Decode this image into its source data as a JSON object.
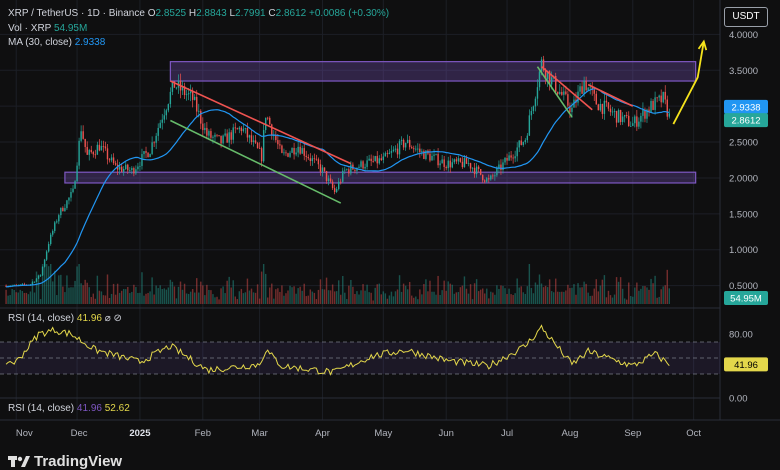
{
  "header": {
    "symbol": "XRP / TetherUS · 1D · Binance",
    "o_label": "O",
    "o": "2.8525",
    "h_label": "H",
    "h": "2.8843",
    "l_label": "L",
    "l": "2.7991",
    "c_label": "C",
    "c": "2.8612",
    "change": "+0.0086 (+0.30%)",
    "vol_label": "Vol · XRP",
    "vol": "54.95M",
    "ma_label": "MA (30, close)",
    "ma": "2.9338"
  },
  "currency_button": "USDT",
  "rsi_header": {
    "label": "RSI (14, close)",
    "value": "41.96",
    "icons": "⌀ ⊘"
  },
  "rsi_footer": {
    "label": "RSI (14, close)",
    "value1": "41.96",
    "value2": "52.62"
  },
  "brand": "TradingView",
  "colors": {
    "up": "#26a69a",
    "down": "#ef5350",
    "ma": "#2196f3",
    "zone": "#7e57c2",
    "rsi": "#e3d74b",
    "arrow": "#f5e31c"
  },
  "chart_data": {
    "type": "candlestick",
    "price_axis": {
      "ticks": [
        "4.0000",
        "3.5000",
        "3.0000",
        "2.5000",
        "2.0000",
        "1.5000",
        "1.0000",
        "0.5000"
      ],
      "ylim": [
        0.3,
        4.2
      ]
    },
    "time_axis": {
      "labels": [
        "Nov",
        "Dec",
        "2025",
        "Feb",
        "Mar",
        "Apr",
        "May",
        "Jun",
        "Jul",
        "Aug",
        "Sep",
        "Oct"
      ]
    },
    "price_labels": {
      "ma": "2.9338",
      "close": "2.8612",
      "volume": "54.95M"
    },
    "rsi_axis": {
      "ticks": [
        "80.00",
        "0.00"
      ],
      "current": "41.96",
      "ylim": [
        0,
        100
      ],
      "overbought": 70,
      "oversold": 30
    },
    "close_path": [
      {
        "d": "2024-11-01",
        "v": 0.5
      },
      {
        "d": "2024-11-08",
        "v": 0.52
      },
      {
        "d": "2024-11-13",
        "v": 0.65
      },
      {
        "d": "2024-11-17",
        "v": 1.1
      },
      {
        "d": "2024-11-22",
        "v": 1.5
      },
      {
        "d": "2024-11-29",
        "v": 1.8
      },
      {
        "d": "2024-12-03",
        "v": 2.7
      },
      {
        "d": "2024-12-06",
        "v": 2.3
      },
      {
        "d": "2024-12-12",
        "v": 2.45
      },
      {
        "d": "2024-12-20",
        "v": 2.15
      },
      {
        "d": "2024-12-28",
        "v": 2.1
      },
      {
        "d": "2025-01-06",
        "v": 2.4
      },
      {
        "d": "2025-01-15",
        "v": 3.1
      },
      {
        "d": "2025-01-18",
        "v": 3.3
      },
      {
        "d": "2025-01-27",
        "v": 3.1
      },
      {
        "d": "2025-02-03",
        "v": 2.6
      },
      {
        "d": "2025-02-10",
        "v": 2.5
      },
      {
        "d": "2025-02-20",
        "v": 2.7
      },
      {
        "d": "2025-03-02",
        "v": 2.3
      },
      {
        "d": "2025-03-04",
        "v": 2.9
      },
      {
        "d": "2025-03-12",
        "v": 2.3
      },
      {
        "d": "2025-03-20",
        "v": 2.45
      },
      {
        "d": "2025-04-01",
        "v": 2.1
      },
      {
        "d": "2025-04-07",
        "v": 1.8
      },
      {
        "d": "2025-04-12",
        "v": 2.1
      },
      {
        "d": "2025-04-22",
        "v": 2.2
      },
      {
        "d": "2025-05-01",
        "v": 2.25
      },
      {
        "d": "2025-05-12",
        "v": 2.5
      },
      {
        "d": "2025-05-20",
        "v": 2.35
      },
      {
        "d": "2025-06-01",
        "v": 2.2
      },
      {
        "d": "2025-06-12",
        "v": 2.2
      },
      {
        "d": "2025-06-22",
        "v": 1.95
      },
      {
        "d": "2025-07-01",
        "v": 2.25
      },
      {
        "d": "2025-07-10",
        "v": 2.55
      },
      {
        "d": "2025-07-18",
        "v": 3.6
      },
      {
        "d": "2025-07-22",
        "v": 3.4
      },
      {
        "d": "2025-08-02",
        "v": 2.95
      },
      {
        "d": "2025-08-08",
        "v": 3.35
      },
      {
        "d": "2025-08-14",
        "v": 3.05
      },
      {
        "d": "2025-08-25",
        "v": 2.85
      },
      {
        "d": "2025-09-01",
        "v": 2.75
      },
      {
        "d": "2025-09-10",
        "v": 3.0
      },
      {
        "d": "2025-09-16",
        "v": 3.1
      },
      {
        "d": "2025-09-19",
        "v": 2.85
      }
    ],
    "rsi_path": [
      {
        "d": "2024-11-01",
        "v": 45
      },
      {
        "d": "2024-11-12",
        "v": 80
      },
      {
        "d": "2024-11-20",
        "v": 85
      },
      {
        "d": "2024-11-28",
        "v": 80
      },
      {
        "d": "2024-12-10",
        "v": 60
      },
      {
        "d": "2025-01-01",
        "v": 45
      },
      {
        "d": "2025-01-16",
        "v": 65
      },
      {
        "d": "2025-02-03",
        "v": 35
      },
      {
        "d": "2025-03-01",
        "v": 42
      },
      {
        "d": "2025-03-04",
        "v": 60
      },
      {
        "d": "2025-03-12",
        "v": 40
      },
      {
        "d": "2025-04-07",
        "v": 32
      },
      {
        "d": "2025-04-25",
        "v": 52
      },
      {
        "d": "2025-05-12",
        "v": 60
      },
      {
        "d": "2025-06-01",
        "v": 47
      },
      {
        "d": "2025-06-22",
        "v": 40
      },
      {
        "d": "2025-07-10",
        "v": 65
      },
      {
        "d": "2025-07-18",
        "v": 88
      },
      {
        "d": "2025-08-02",
        "v": 42
      },
      {
        "d": "2025-08-10",
        "v": 58
      },
      {
        "d": "2025-09-01",
        "v": 40
      },
      {
        "d": "2025-09-12",
        "v": 55
      },
      {
        "d": "2025-09-19",
        "v": 42
      }
    ],
    "zones": [
      {
        "name": "resistance",
        "from": "2025-01-16",
        "to": "2025-10-02",
        "low": 3.35,
        "high": 3.62
      },
      {
        "name": "support",
        "from": "2024-11-25",
        "to": "2025-10-02",
        "low": 1.93,
        "high": 2.08
      }
    ],
    "trendlines": [
      {
        "color": "down",
        "from": {
          "d": "2025-01-16",
          "v": 3.35
        },
        "to": {
          "d": "2025-04-15",
          "v": 2.2
        }
      },
      {
        "color": "up",
        "from": {
          "d": "2025-01-16",
          "v": 2.8
        },
        "to": {
          "d": "2025-04-10",
          "v": 1.65
        }
      },
      {
        "color": "down",
        "from": {
          "d": "2025-07-18",
          "v": 3.55
        },
        "to": {
          "d": "2025-08-12",
          "v": 2.95
        }
      },
      {
        "color": "up",
        "from": {
          "d": "2025-07-16",
          "v": 3.55
        },
        "to": {
          "d": "2025-08-02",
          "v": 2.85
        }
      },
      {
        "color": "down",
        "from": {
          "d": "2025-08-10",
          "v": 3.3
        },
        "to": {
          "d": "2025-09-01",
          "v": 3.0
        }
      }
    ],
    "projection_arrow": [
      {
        "d": "2025-09-21",
        "v": 2.75
      },
      {
        "d": "2025-10-03",
        "v": 3.4
      },
      {
        "d": "2025-10-06",
        "v": 3.9
      }
    ]
  }
}
